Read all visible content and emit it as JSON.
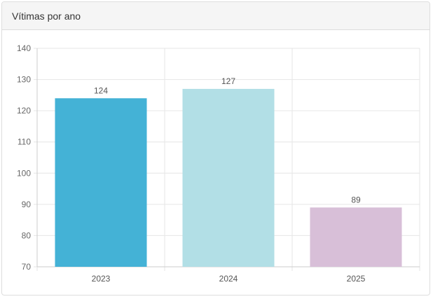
{
  "panel": {
    "title": "Vítimas por ano"
  },
  "chart_data": {
    "type": "bar",
    "categories": [
      "2023",
      "2024",
      "2025"
    ],
    "values": [
      124,
      127,
      89
    ],
    "data_labels": [
      "124",
      "127",
      "89"
    ],
    "colors": [
      "#44b2d6",
      "#b2dfe6",
      "#d8bfd8"
    ],
    "ylim": [
      70,
      140
    ],
    "yticks": [
      70,
      80,
      90,
      100,
      110,
      120,
      130,
      140
    ],
    "grid": true,
    "legend": "none"
  }
}
